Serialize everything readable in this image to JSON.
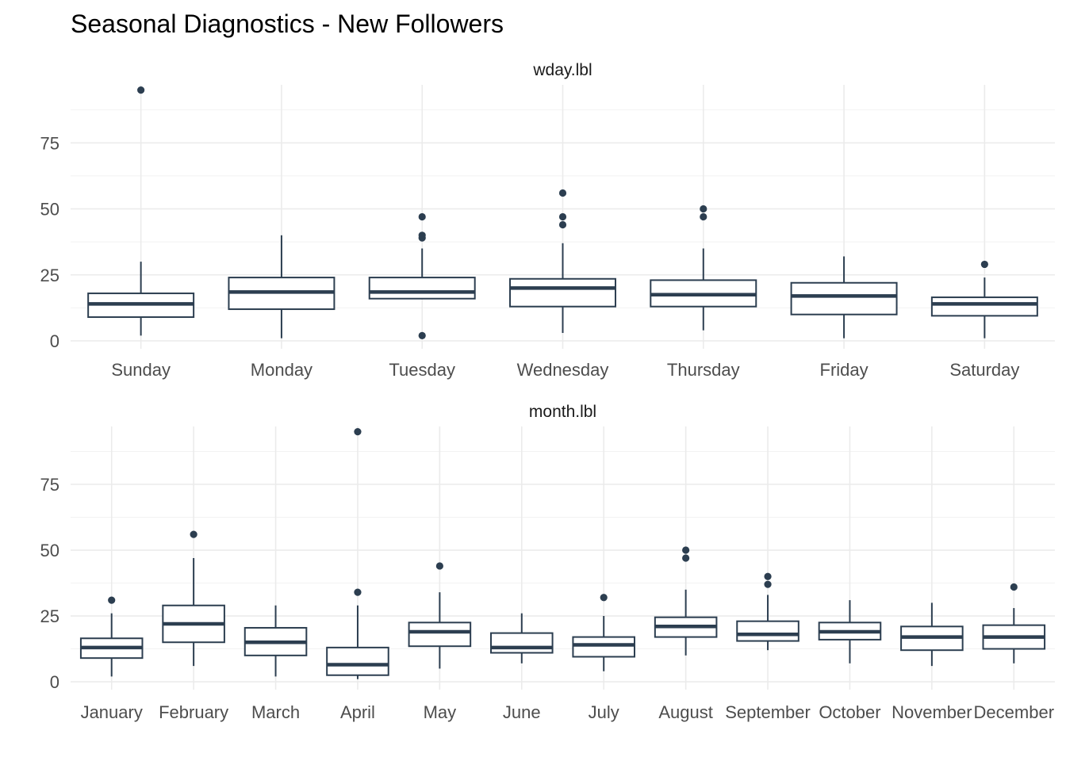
{
  "chart_data": [
    {
      "type": "boxplot",
      "title": "Seasonal Diagnostics - New Followers",
      "panel_label": "wday.lbl",
      "yticks": [
        0,
        25,
        50,
        75
      ],
      "ylim": [
        -3,
        100
      ],
      "grid": true,
      "color": "#2c3e50",
      "categories": [
        "Sunday",
        "Monday",
        "Tuesday",
        "Wednesday",
        "Thursday",
        "Friday",
        "Saturday"
      ],
      "boxes": [
        {
          "label": "Sunday",
          "lower": 2,
          "q1": 9,
          "median": 14,
          "q3": 18,
          "upper": 30,
          "outliers": [
            95
          ]
        },
        {
          "label": "Monday",
          "lower": 1,
          "q1": 12,
          "median": 18.5,
          "q3": 24,
          "upper": 40,
          "outliers": []
        },
        {
          "label": "Tuesday",
          "lower": 16,
          "q1": 16,
          "median": 18.5,
          "q3": 24,
          "upper": 35,
          "outliers": [
            2,
            39,
            40,
            47
          ]
        },
        {
          "label": "Wednesday",
          "lower": 3,
          "q1": 13,
          "median": 20,
          "q3": 23.5,
          "upper": 37,
          "outliers": [
            44,
            47,
            56
          ]
        },
        {
          "label": "Thursday",
          "lower": 4,
          "q1": 13,
          "median": 17.5,
          "q3": 23,
          "upper": 35,
          "outliers": [
            47,
            50
          ]
        },
        {
          "label": "Friday",
          "lower": 1,
          "q1": 10,
          "median": 17,
          "q3": 22,
          "upper": 32,
          "outliers": []
        },
        {
          "label": "Saturday",
          "lower": 1,
          "q1": 9.5,
          "median": 14,
          "q3": 16.5,
          "upper": 24,
          "outliers": [
            29
          ]
        }
      ]
    },
    {
      "type": "boxplot",
      "panel_label": "month.lbl",
      "yticks": [
        0,
        25,
        50,
        75
      ],
      "ylim": [
        -3,
        100
      ],
      "grid": true,
      "color": "#2c3e50",
      "categories": [
        "January",
        "February",
        "March",
        "April",
        "May",
        "June",
        "July",
        "August",
        "September",
        "October",
        "November",
        "December"
      ],
      "boxes": [
        {
          "label": "January",
          "lower": 2,
          "q1": 9,
          "median": 13,
          "q3": 16.5,
          "upper": 26,
          "outliers": [
            31
          ]
        },
        {
          "label": "February",
          "lower": 6,
          "q1": 15,
          "median": 22,
          "q3": 29,
          "upper": 47,
          "outliers": [
            56
          ]
        },
        {
          "label": "March",
          "lower": 2,
          "q1": 10,
          "median": 15,
          "q3": 20.5,
          "upper": 29,
          "outliers": []
        },
        {
          "label": "April",
          "lower": 1,
          "q1": 2.5,
          "median": 6.5,
          "q3": 13,
          "upper": 29,
          "outliers": [
            34,
            95
          ]
        },
        {
          "label": "May",
          "lower": 5,
          "q1": 13.5,
          "median": 19,
          "q3": 22.5,
          "upper": 34,
          "outliers": [
            44
          ]
        },
        {
          "label": "June",
          "lower": 7,
          "q1": 11,
          "median": 13,
          "q3": 18.5,
          "upper": 26,
          "outliers": []
        },
        {
          "label": "July",
          "lower": 4,
          "q1": 9.5,
          "median": 14,
          "q3": 17,
          "upper": 25,
          "outliers": [
            32
          ]
        },
        {
          "label": "August",
          "lower": 10,
          "q1": 17,
          "median": 21,
          "q3": 24.5,
          "upper": 35,
          "outliers": [
            47,
            50
          ]
        },
        {
          "label": "September",
          "lower": 12,
          "q1": 15.5,
          "median": 18,
          "q3": 23,
          "upper": 33,
          "outliers": [
            37,
            40
          ]
        },
        {
          "label": "October",
          "lower": 7,
          "q1": 16,
          "median": 19,
          "q3": 22.5,
          "upper": 31,
          "outliers": []
        },
        {
          "label": "November",
          "lower": 6,
          "q1": 12,
          "median": 17,
          "q3": 21,
          "upper": 30,
          "outliers": []
        },
        {
          "label": "December",
          "lower": 7,
          "q1": 12.5,
          "median": 17,
          "q3": 21.5,
          "upper": 28,
          "outliers": [
            36
          ]
        }
      ]
    }
  ]
}
